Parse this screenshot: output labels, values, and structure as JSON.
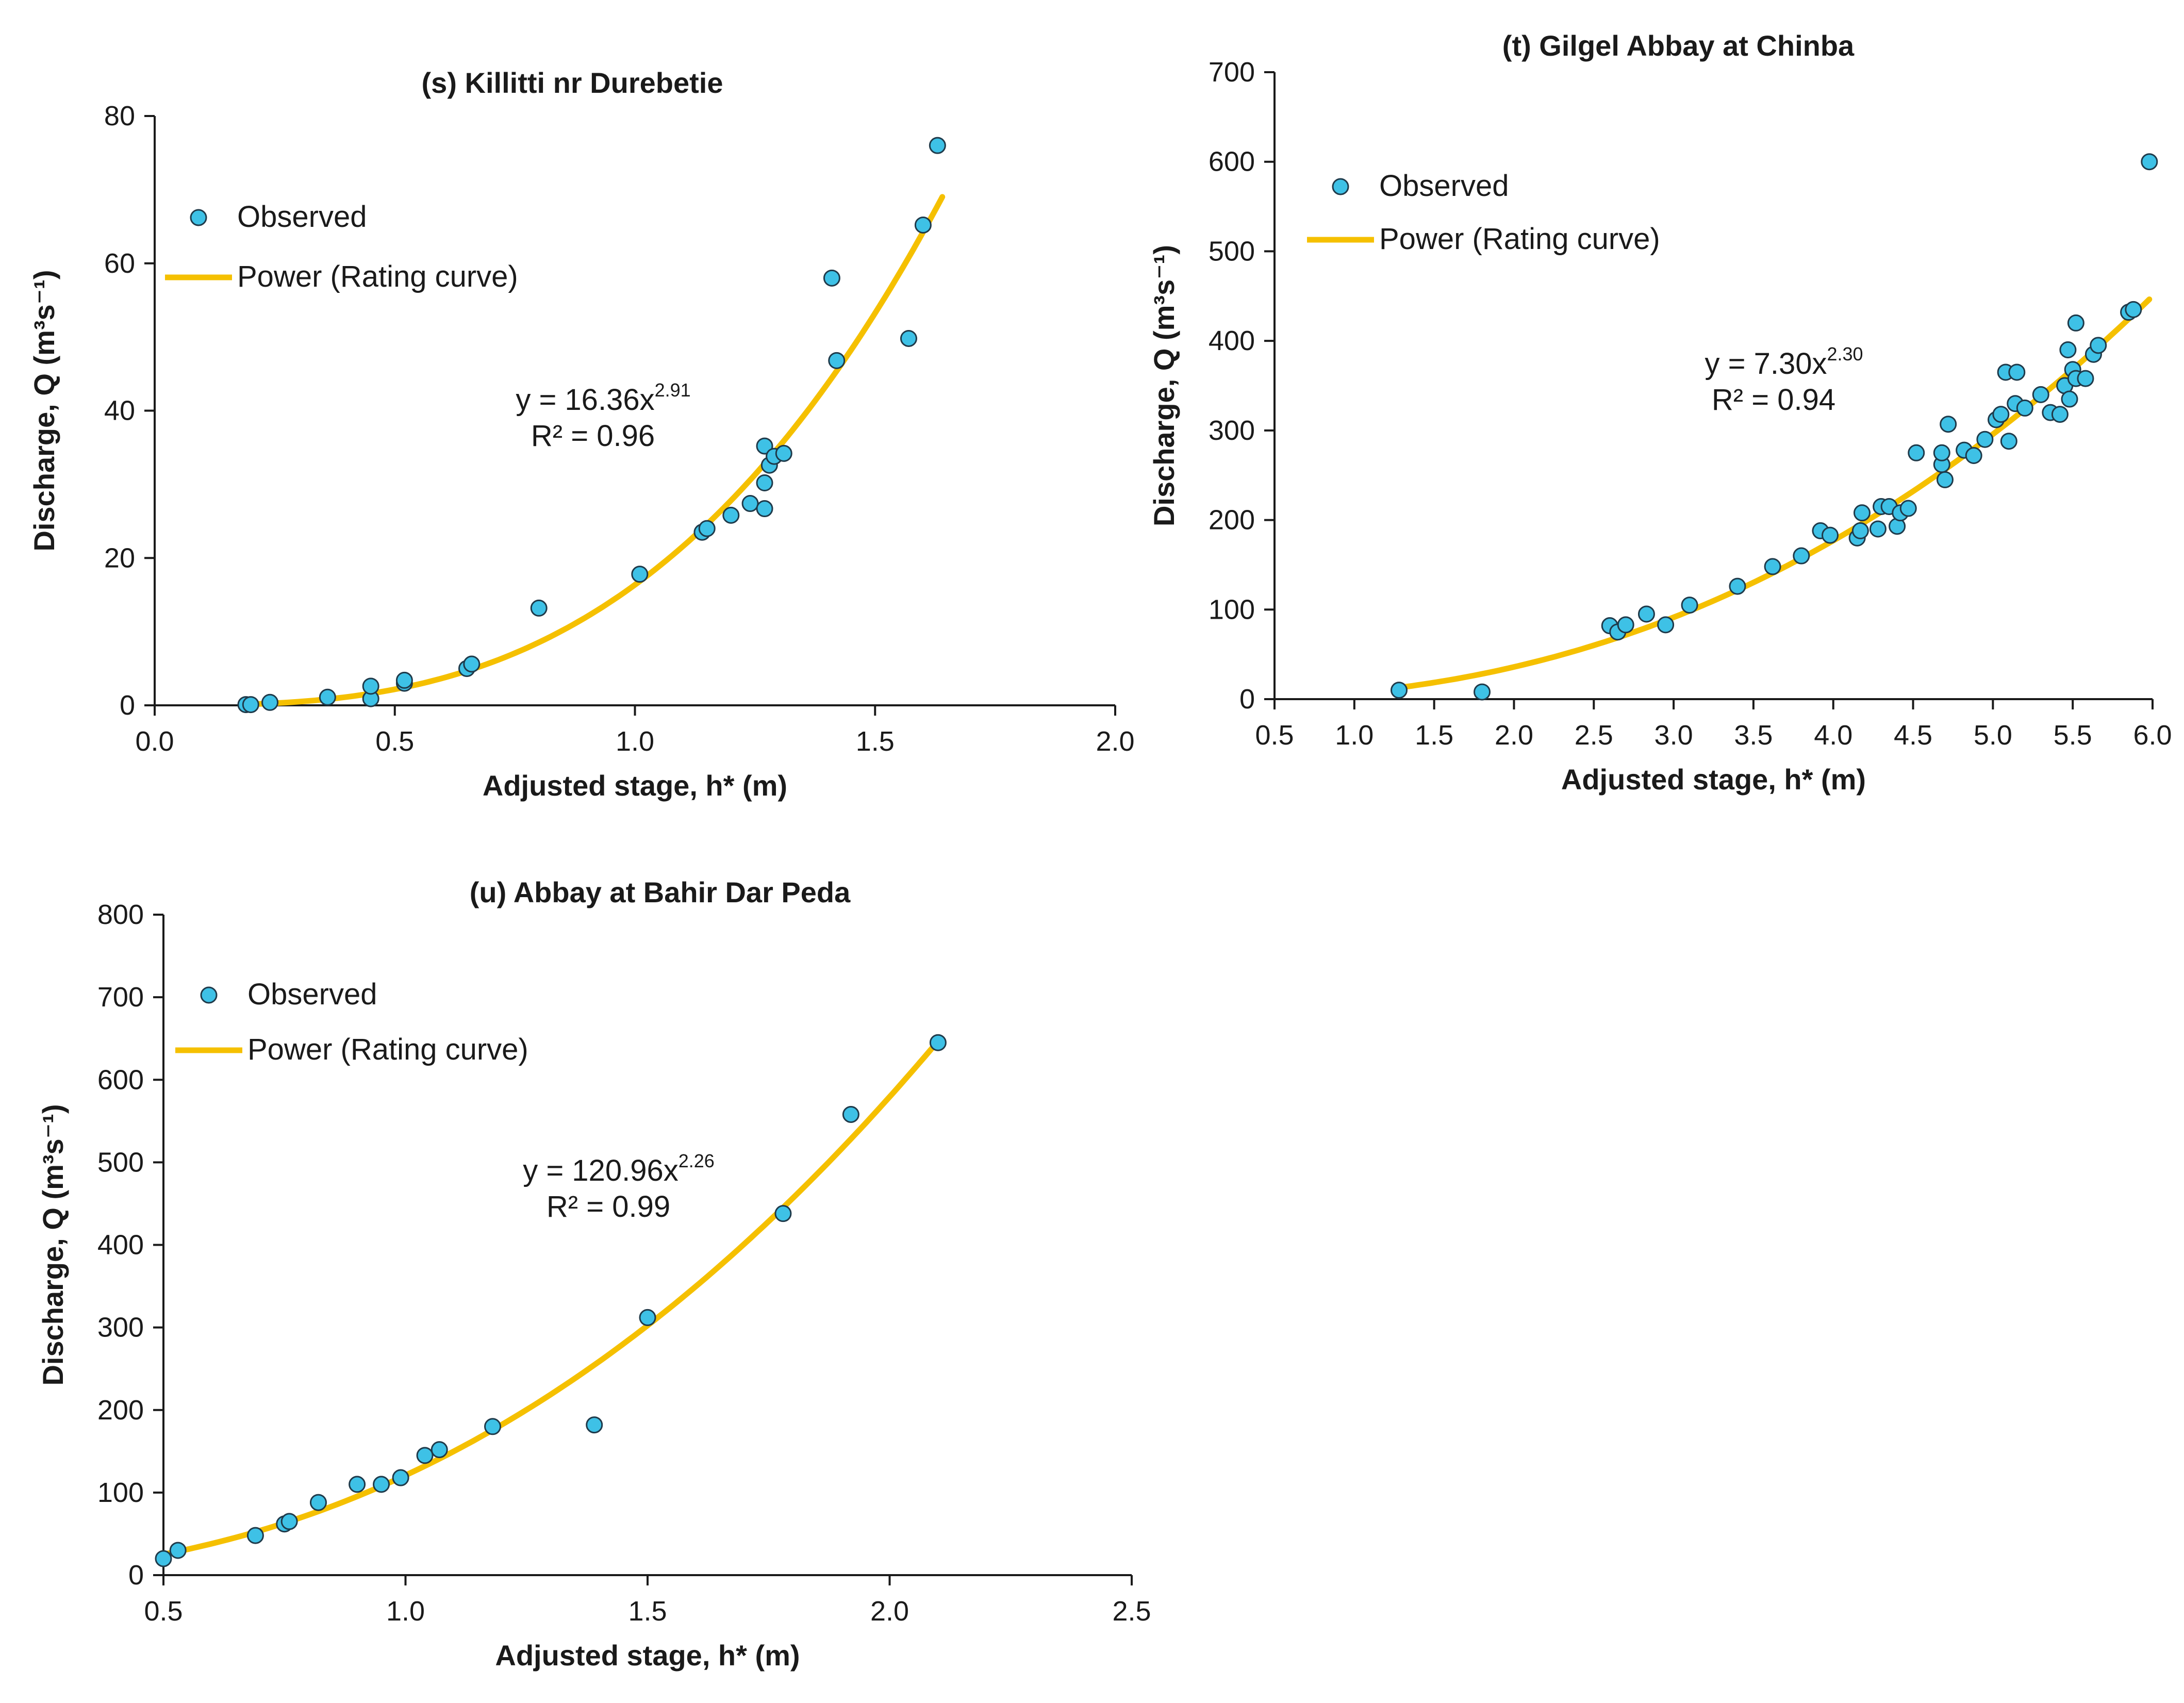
{
  "colors": {
    "point_fill": "#3ec1e6",
    "point_stroke": "#1f3a4a",
    "curve": "#f5c000",
    "axis": "#1a1a1a"
  },
  "chart_data": [
    {
      "id": "s",
      "type": "scatter",
      "title": "(s) Killitti nr Durebetie",
      "xlabel": "Adjusted stage, h* (m)",
      "ylabel": "Discharge, Q (m³s⁻¹)",
      "xlim": [
        0,
        2
      ],
      "ylim": [
        0,
        80
      ],
      "xticks": [
        0,
        0.5,
        1,
        1.5,
        2
      ],
      "xtick_labels": [
        "0.0",
        "0.5",
        "1.0",
        "1.5",
        "2.0"
      ],
      "yticks": [
        0,
        20,
        40,
        60,
        80
      ],
      "ytick_labels": [
        "0",
        "20",
        "40",
        "60",
        "80"
      ],
      "legend": {
        "position": "top-left",
        "observed": "Observed",
        "curve": "Power (Rating curve)"
      },
      "equation": {
        "lhs": "y = 16.36x",
        "exponent": "2.91",
        "r2": "R² = 0.96"
      },
      "fit": {
        "a": 16.36,
        "b": 2.91,
        "x_range": [
          0.2,
          1.64
        ]
      },
      "series": [
        {
          "name": "Observed",
          "points": [
            [
              0.19,
              0.1
            ],
            [
              0.2,
              0.1
            ],
            [
              0.24,
              0.4
            ],
            [
              0.36,
              1.1
            ],
            [
              0.45,
              0.9
            ],
            [
              0.45,
              2.6
            ],
            [
              0.52,
              3.0
            ],
            [
              0.52,
              3.4
            ],
            [
              0.65,
              5.0
            ],
            [
              0.66,
              5.6
            ],
            [
              0.8,
              13.2
            ],
            [
              1.01,
              17.8
            ],
            [
              1.14,
              23.5
            ],
            [
              1.15,
              24.0
            ],
            [
              1.2,
              25.8
            ],
            [
              1.24,
              27.4
            ],
            [
              1.27,
              26.7
            ],
            [
              1.27,
              30.2
            ],
            [
              1.28,
              32.6
            ],
            [
              1.27,
              35.2
            ],
            [
              1.29,
              33.8
            ],
            [
              1.31,
              34.2
            ],
            [
              1.41,
              58.0
            ],
            [
              1.42,
              46.8
            ],
            [
              1.57,
              49.8
            ],
            [
              1.6,
              65.2
            ],
            [
              1.63,
              76.0
            ]
          ]
        }
      ]
    },
    {
      "id": "t",
      "type": "scatter",
      "title": "(t) Gilgel Abbay at Chinba",
      "xlabel": "Adjusted stage, h* (m)",
      "ylabel": "Discharge, Q (m³s⁻¹)",
      "xlim": [
        0.5,
        6
      ],
      "ylim": [
        0,
        700
      ],
      "xticks": [
        0.5,
        1,
        1.5,
        2,
        2.5,
        3,
        3.5,
        4,
        4.5,
        5,
        5.5,
        6
      ],
      "xtick_labels": [
        "0.5",
        "1.0",
        "1.5",
        "2.0",
        "2.5",
        "3.0",
        "3.5",
        "4.0",
        "4.5",
        "5.0",
        "5.5",
        "6.0"
      ],
      "yticks": [
        0,
        100,
        200,
        300,
        400,
        500,
        600,
        700
      ],
      "ytick_labels": [
        "0",
        "100",
        "200",
        "300",
        "400",
        "500",
        "600",
        "700"
      ],
      "legend": {
        "position": "top-left",
        "observed": "Observed",
        "curve": "Power (Rating curve)"
      },
      "equation": {
        "lhs": "y = 7.30x",
        "exponent": "2.30",
        "r2": "R² = 0.94"
      },
      "fit": {
        "a": 7.3,
        "b": 2.3,
        "x_range": [
          1.28,
          5.98
        ]
      },
      "series": [
        {
          "name": "Observed",
          "points": [
            [
              1.28,
              10
            ],
            [
              1.8,
              8
            ],
            [
              2.6,
              82
            ],
            [
              2.65,
              75
            ],
            [
              2.7,
              83
            ],
            [
              2.83,
              95
            ],
            [
              2.95,
              83
            ],
            [
              3.1,
              105
            ],
            [
              3.4,
              126
            ],
            [
              3.62,
              148
            ],
            [
              3.8,
              160
            ],
            [
              3.92,
              188
            ],
            [
              3.98,
              183
            ],
            [
              4.15,
              180
            ],
            [
              4.17,
              188
            ],
            [
              4.18,
              208
            ],
            [
              4.28,
              190
            ],
            [
              4.3,
              215
            ],
            [
              4.35,
              215
            ],
            [
              4.4,
              193
            ],
            [
              4.42,
              208
            ],
            [
              4.47,
              213
            ],
            [
              4.52,
              275
            ],
            [
              4.68,
              262
            ],
            [
              4.68,
              275
            ],
            [
              4.7,
              245
            ],
            [
              4.72,
              307
            ],
            [
              4.82,
              278
            ],
            [
              4.88,
              272
            ],
            [
              4.95,
              290
            ],
            [
              5.02,
              312
            ],
            [
              5.05,
              318
            ],
            [
              5.08,
              365
            ],
            [
              5.1,
              288
            ],
            [
              5.14,
              330
            ],
            [
              5.15,
              365
            ],
            [
              5.2,
              325
            ],
            [
              5.3,
              340
            ],
            [
              5.36,
              320
            ],
            [
              5.42,
              318
            ],
            [
              5.45,
              350
            ],
            [
              5.47,
              390
            ],
            [
              5.48,
              335
            ],
            [
              5.5,
              368
            ],
            [
              5.52,
              420
            ],
            [
              5.52,
              358
            ],
            [
              5.58,
              358
            ],
            [
              5.63,
              385
            ],
            [
              5.66,
              395
            ],
            [
              5.85,
              432
            ],
            [
              5.88,
              435
            ],
            [
              5.98,
              600
            ]
          ]
        }
      ]
    },
    {
      "id": "u",
      "type": "scatter",
      "title": "(u) Abbay at Bahir Dar Peda",
      "xlabel": "Adjusted stage, h* (m)",
      "ylabel": "Discharge, Q (m³s⁻¹)",
      "xlim": [
        0.5,
        2.5
      ],
      "ylim": [
        0,
        800
      ],
      "xticks": [
        0.5,
        1,
        1.5,
        2,
        2.5
      ],
      "xtick_labels": [
        "0.5",
        "1.0",
        "1.5",
        "2.0",
        "2.5"
      ],
      "yticks": [
        0,
        100,
        200,
        300,
        400,
        500,
        600,
        700,
        800
      ],
      "ytick_labels": [
        "0",
        "100",
        "200",
        "300",
        "400",
        "500",
        "600",
        "700",
        "800"
      ],
      "legend": {
        "position": "top-left",
        "observed": "Observed",
        "curve": "Power (Rating curve)"
      },
      "equation": {
        "lhs": "y = 120.96x",
        "exponent": "2.26",
        "r2": "R² = 0.99"
      },
      "fit": {
        "a": 120.96,
        "b": 2.26,
        "x_range": [
          0.5,
          2.1
        ]
      },
      "series": [
        {
          "name": "Observed",
          "points": [
            [
              0.5,
              20
            ],
            [
              0.53,
              30
            ],
            [
              0.69,
              48
            ],
            [
              0.75,
              62
            ],
            [
              0.76,
              65
            ],
            [
              0.82,
              88
            ],
            [
              0.9,
              110
            ],
            [
              0.95,
              110
            ],
            [
              0.99,
              118
            ],
            [
              1.04,
              145
            ],
            [
              1.07,
              152
            ],
            [
              1.18,
              180
            ],
            [
              1.39,
              182
            ],
            [
              1.5,
              312
            ],
            [
              1.78,
              438
            ],
            [
              1.92,
              558
            ],
            [
              2.1,
              645
            ]
          ]
        }
      ]
    }
  ]
}
